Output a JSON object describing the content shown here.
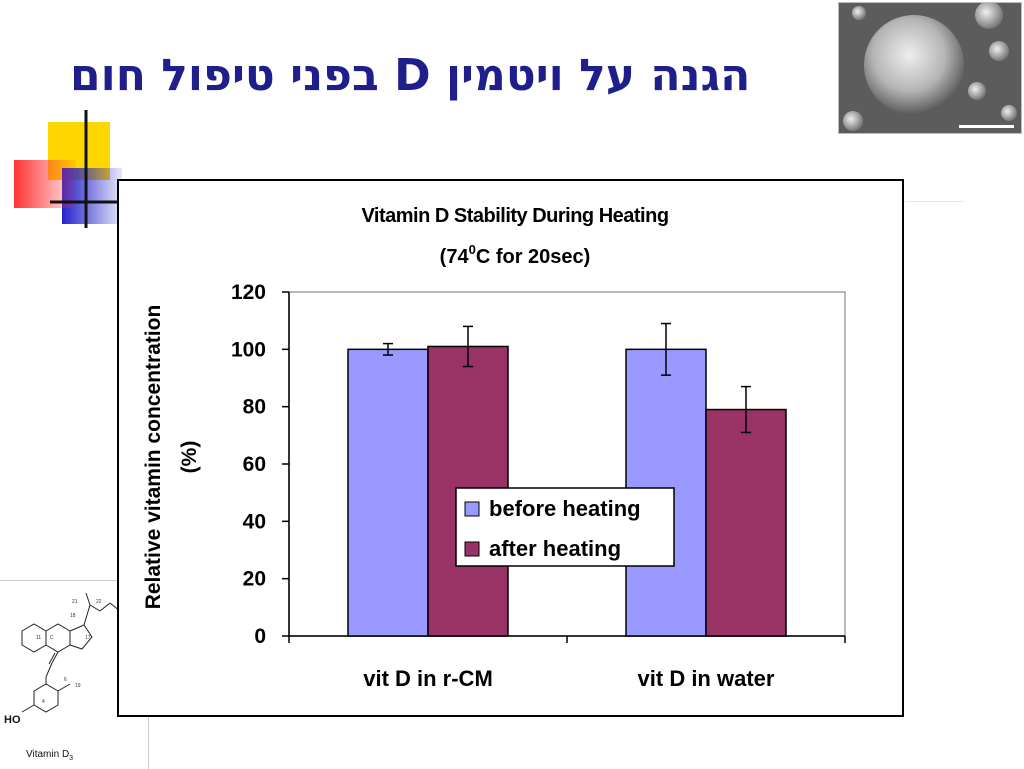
{
  "slide": {
    "title": "הגנה על ויטמין D בפני טיפול חום",
    "structure_caption": "Vitamin D",
    "structure_caption_sub": "3",
    "structure_ho": "HO"
  },
  "chart_data": {
    "type": "bar",
    "title": "Vitamin D Stability During Heating",
    "subtitle_prefix": "(74",
    "subtitle_sup": "0",
    "subtitle_suffix": "C for 20sec)",
    "ylabel_line1": "Relative vitamin concentration",
    "ylabel_line2": "(%)",
    "xlabel": "",
    "ylim": [
      0,
      120
    ],
    "yticks": [
      0,
      20,
      40,
      60,
      80,
      100,
      120
    ],
    "categories": [
      "vit D in r-CM",
      "vit D in water"
    ],
    "series": [
      {
        "name": "before heating",
        "color": "#9999ff",
        "values": [
          100,
          100
        ],
        "errors": [
          2,
          9
        ]
      },
      {
        "name": "after heating",
        "color": "#993366",
        "values": [
          101,
          79
        ],
        "errors": [
          7,
          8
        ]
      }
    ],
    "legend_position": "center",
    "grid": false
  }
}
